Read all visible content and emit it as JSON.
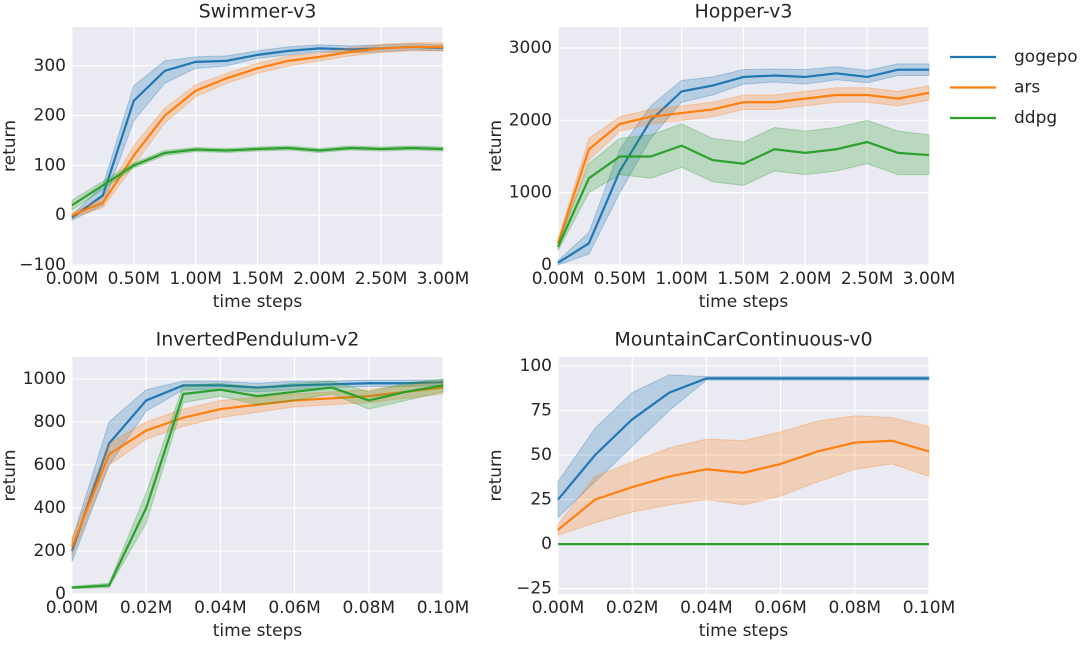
{
  "chart_data": [
    {
      "type": "line",
      "title": "Swimmer-v3",
      "x_label": "time steps",
      "y_label": "return",
      "x": [
        0,
        250000,
        500000,
        750000,
        1000000,
        1250000,
        1500000,
        1750000,
        2000000,
        2250000,
        2500000,
        2750000,
        3000000
      ],
      "series": [
        {
          "color": "#1f77b4",
          "values": [
            -5,
            40,
            230,
            290,
            308,
            310,
            322,
            330,
            335,
            333,
            335,
            338,
            336
          ],
          "lower": [
            -10,
            20,
            190,
            265,
            295,
            300,
            315,
            322,
            328,
            326,
            328,
            332,
            330
          ],
          "upper": [
            0,
            60,
            260,
            310,
            318,
            320,
            330,
            338,
            342,
            340,
            342,
            344,
            342
          ]
        },
        {
          "color": "#ff7f0e",
          "values": [
            0,
            25,
            120,
            200,
            250,
            275,
            295,
            310,
            318,
            328,
            335,
            338,
            338
          ],
          "lower": [
            -5,
            15,
            100,
            185,
            238,
            265,
            285,
            300,
            310,
            320,
            327,
            330,
            330
          ],
          "upper": [
            5,
            35,
            140,
            215,
            262,
            285,
            305,
            320,
            326,
            336,
            343,
            346,
            346
          ]
        },
        {
          "color": "#2ca02c",
          "values": [
            20,
            60,
            100,
            125,
            132,
            130,
            133,
            135,
            130,
            135,
            133,
            135,
            133
          ],
          "lower": [
            10,
            52,
            95,
            120,
            128,
            126,
            129,
            131,
            126,
            131,
            129,
            131,
            129
          ],
          "upper": [
            30,
            68,
            105,
            130,
            136,
            134,
            137,
            139,
            134,
            139,
            137,
            139,
            137
          ]
        }
      ],
      "xlim": [
        0,
        3000000
      ],
      "ylim": [
        -100,
        378
      ],
      "xticks": [
        {
          "value": 0,
          "label": "0.00M"
        },
        {
          "value": 500000,
          "label": "0.50M"
        },
        {
          "value": 1000000,
          "label": "1.00M"
        },
        {
          "value": 1500000,
          "label": "1.50M"
        },
        {
          "value": 2000000,
          "label": "2.00M"
        },
        {
          "value": 2500000,
          "label": "2.50M"
        },
        {
          "value": 3000000,
          "label": "3.00M"
        }
      ],
      "yticks": [
        {
          "value": -100,
          "label": "−100"
        },
        0,
        100,
        200,
        300
      ],
      "grid": true
    },
    {
      "type": "line",
      "title": "Hopper-v3",
      "x_label": "time steps",
      "y_label": "return",
      "x": [
        0,
        250000,
        500000,
        750000,
        1000000,
        1250000,
        1500000,
        1750000,
        2000000,
        2250000,
        2500000,
        2750000,
        3000000
      ],
      "series": [
        {
          "name": "gogepo",
          "color": "#1f77b4",
          "values": [
            30,
            300,
            1300,
            2000,
            2400,
            2480,
            2600,
            2620,
            2600,
            2650,
            2600,
            2700,
            2700
          ],
          "lower": [
            0,
            150,
            1000,
            1750,
            2250,
            2350,
            2500,
            2530,
            2500,
            2560,
            2520,
            2620,
            2620
          ],
          "upper": [
            60,
            450,
            1600,
            2200,
            2550,
            2600,
            2700,
            2710,
            2700,
            2740,
            2690,
            2780,
            2780
          ]
        },
        {
          "name": "ars",
          "color": "#ff7f0e",
          "values": [
            300,
            1600,
            1950,
            2050,
            2100,
            2150,
            2250,
            2250,
            2300,
            2350,
            2350,
            2300,
            2380
          ],
          "lower": [
            250,
            1450,
            1850,
            1950,
            2000,
            2050,
            2150,
            2150,
            2200,
            2250,
            2250,
            2200,
            2280
          ],
          "upper": [
            350,
            1750,
            2050,
            2150,
            2200,
            2250,
            2350,
            2350,
            2400,
            2450,
            2450,
            2400,
            2480
          ]
        },
        {
          "name": "ddpg",
          "color": "#2ca02c",
          "values": [
            250,
            1200,
            1500,
            1500,
            1650,
            1450,
            1400,
            1600,
            1550,
            1600,
            1700,
            1550,
            1520
          ],
          "lower": [
            200,
            1000,
            1250,
            1200,
            1350,
            1150,
            1100,
            1300,
            1250,
            1300,
            1400,
            1250,
            1250
          ],
          "upper": [
            300,
            1400,
            1750,
            1800,
            1950,
            1750,
            1700,
            1900,
            1850,
            1900,
            2000,
            1850,
            1800
          ]
        }
      ],
      "xlim": [
        0,
        3000000
      ],
      "ylim": [
        0,
        3290
      ],
      "xticks": [
        {
          "value": 0,
          "label": "0.00M"
        },
        {
          "value": 500000,
          "label": "0.50M"
        },
        {
          "value": 1000000,
          "label": "1.00M"
        },
        {
          "value": 1500000,
          "label": "1.50M"
        },
        {
          "value": 2000000,
          "label": "2.00M"
        },
        {
          "value": 2500000,
          "label": "2.50M"
        },
        {
          "value": 3000000,
          "label": "3.00M"
        }
      ],
      "yticks": [
        0,
        1000,
        2000,
        3000
      ],
      "grid": true,
      "legend": "outside right"
    },
    {
      "type": "line",
      "title": "InvertedPendulum-v2",
      "x_label": "time steps",
      "y_label": "return",
      "x": [
        0,
        10000,
        20000,
        30000,
        40000,
        50000,
        60000,
        70000,
        80000,
        90000,
        100000
      ],
      "series": [
        {
          "color": "#1f77b4",
          "values": [
            200,
            700,
            900,
            970,
            970,
            960,
            970,
            975,
            980,
            980,
            985
          ],
          "lower": [
            150,
            600,
            850,
            950,
            950,
            940,
            950,
            960,
            965,
            965,
            970
          ],
          "upper": [
            250,
            800,
            950,
            990,
            990,
            980,
            990,
            990,
            995,
            995,
            995
          ]
        },
        {
          "color": "#ff7f0e",
          "values": [
            220,
            650,
            760,
            820,
            860,
            880,
            900,
            910,
            920,
            940,
            960
          ],
          "lower": [
            180,
            600,
            720,
            780,
            820,
            845,
            870,
            880,
            890,
            910,
            930
          ],
          "upper": [
            260,
            700,
            800,
            860,
            900,
            915,
            930,
            940,
            950,
            970,
            990
          ]
        },
        {
          "color": "#2ca02c",
          "values": [
            30,
            40,
            400,
            930,
            950,
            920,
            940,
            960,
            900,
            940,
            970
          ],
          "lower": [
            25,
            30,
            330,
            890,
            920,
            880,
            900,
            930,
            860,
            900,
            940
          ],
          "upper": [
            35,
            50,
            470,
            970,
            980,
            960,
            980,
            990,
            940,
            980,
            1000
          ]
        }
      ],
      "xlim": [
        0,
        100000
      ],
      "ylim": [
        0,
        1102
      ],
      "xticks": [
        {
          "value": 0,
          "label": "0.00M"
        },
        {
          "value": 20000,
          "label": "0.02M"
        },
        {
          "value": 40000,
          "label": "0.04M"
        },
        {
          "value": 60000,
          "label": "0.06M"
        },
        {
          "value": 80000,
          "label": "0.08M"
        },
        {
          "value": 100000,
          "label": "0.10M"
        }
      ],
      "yticks": [
        0,
        200,
        400,
        600,
        800,
        1000
      ],
      "grid": true
    },
    {
      "type": "line",
      "title": "MountainCarContinuous-v0",
      "x_label": "time steps",
      "y_label": "return",
      "x": [
        0,
        10000,
        20000,
        30000,
        40000,
        50000,
        60000,
        70000,
        80000,
        90000,
        100000
      ],
      "series": [
        {
          "color": "#1f77b4",
          "values": [
            25,
            50,
            70,
            85,
            93,
            93,
            93,
            93,
            93,
            93,
            93
          ],
          "lower": [
            15,
            35,
            55,
            75,
            92,
            92,
            92,
            92,
            92,
            92,
            92
          ],
          "upper": [
            35,
            65,
            85,
            95,
            94,
            94,
            94,
            94,
            94,
            94,
            94
          ]
        },
        {
          "color": "#ff7f0e",
          "values": [
            8,
            25,
            32,
            38,
            42,
            40,
            45,
            52,
            57,
            58,
            52
          ],
          "lower": [
            5,
            12,
            18,
            22,
            25,
            22,
            27,
            35,
            42,
            45,
            38
          ],
          "upper": [
            11,
            38,
            46,
            54,
            59,
            58,
            63,
            69,
            72,
            71,
            66
          ]
        },
        {
          "color": "#2ca02c",
          "values": [
            0,
            0,
            0,
            0,
            0,
            0,
            0,
            0,
            0,
            0,
            0
          ]
        }
      ],
      "xlim": [
        0,
        100000
      ],
      "ylim": [
        -28,
        105
      ],
      "xticks": [
        {
          "value": 0,
          "label": "0.00M"
        },
        {
          "value": 20000,
          "label": "0.02M"
        },
        {
          "value": 40000,
          "label": "0.04M"
        },
        {
          "value": 60000,
          "label": "0.06M"
        },
        {
          "value": 80000,
          "label": "0.08M"
        },
        {
          "value": 100000,
          "label": "0.10M"
        }
      ],
      "yticks": [
        {
          "value": -25,
          "label": "−25"
        },
        0,
        25,
        50,
        75,
        100
      ],
      "grid": true
    }
  ]
}
